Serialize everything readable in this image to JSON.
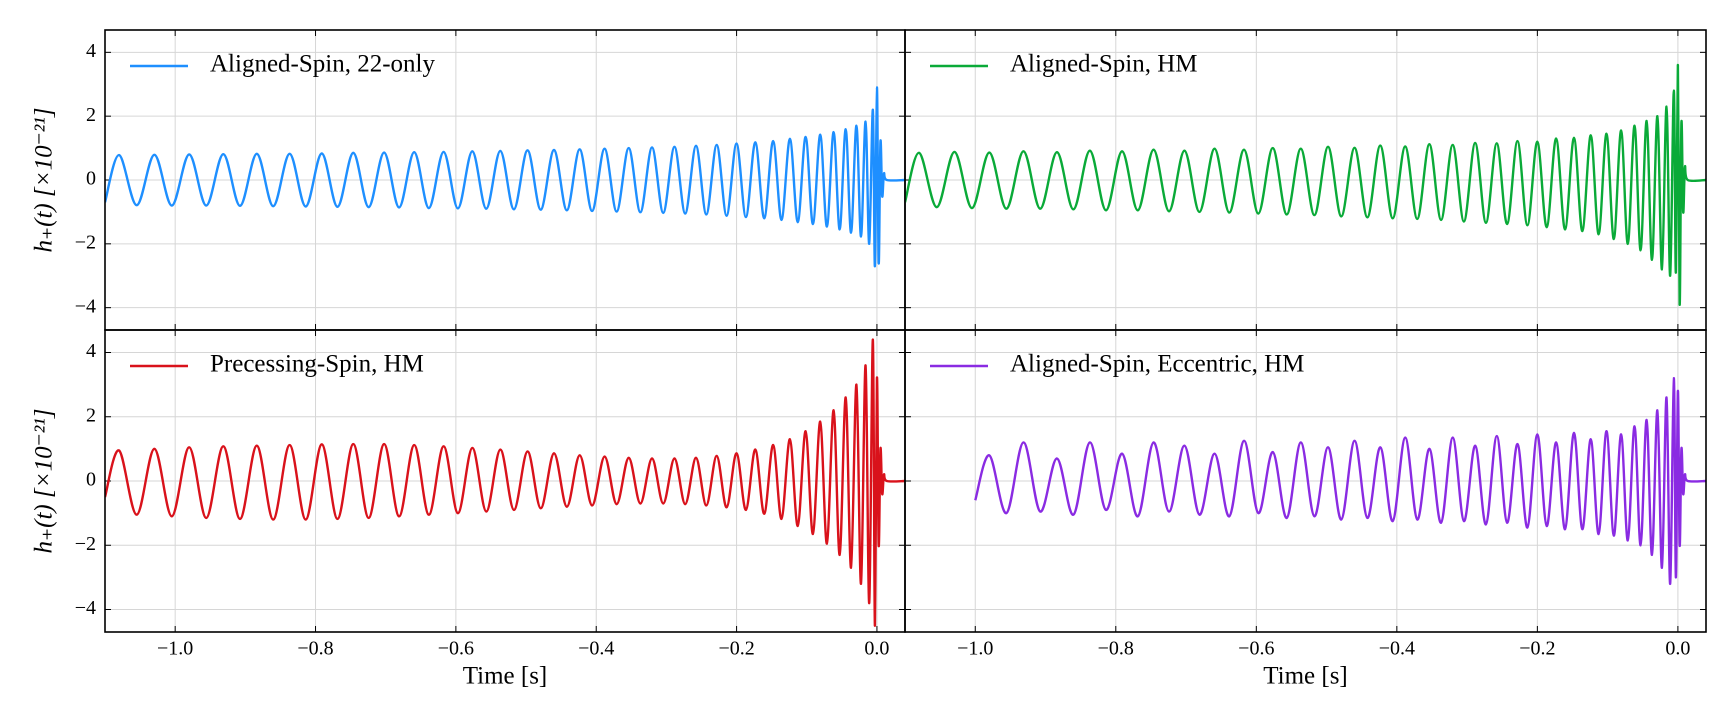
{
  "chart_data": [
    {
      "type": "line",
      "legend": "upper left",
      "grid": true,
      "ylabel": "h₊(t) [×10⁻²¹]",
      "xlim": [
        -1.1,
        0.04
      ],
      "ylim": [
        -4.7,
        4.7
      ],
      "xticks": [
        -1,
        -0.8,
        -0.6,
        -0.4,
        -0.2,
        0
      ],
      "yticks": [
        {
          "value": -4,
          "label": "−4"
        },
        {
          "value": -2,
          "label": "−2"
        },
        0,
        2,
        4
      ],
      "x": [
        -1.1,
        -1.08,
        -1.0548,
        -1.0296,
        -1.0048,
        -0.98,
        -0.9557,
        -0.9314,
        -0.9076,
        -0.8837,
        -0.8603,
        -0.8369,
        -0.814,
        -0.7911,
        -0.7687,
        -0.7462,
        -0.7243,
        -0.7023,
        -0.6809,
        -0.6594,
        -0.6385,
        -0.6175,
        -0.5971,
        -0.5766,
        -0.5567,
        -0.5367,
        -0.5173,
        -0.4979,
        -0.4791,
        -0.4602,
        -0.4419,
        -0.4236,
        -0.4059,
        -0.3881,
        -0.3709,
        -0.3537,
        -0.3371,
        -0.3205,
        -0.3045,
        -0.2885,
        -0.2732,
        -0.2578,
        -0.2431,
        -0.2283,
        -0.2142,
        -0.2001,
        -0.1867,
        -0.1733,
        -0.1606,
        -0.1479,
        -0.136,
        -0.124,
        -0.1128,
        -0.1016,
        -0.0912,
        -0.0808,
        -0.0713,
        -0.0617,
        -0.0531,
        -0.0445,
        -0.0369,
        -0.0292,
        -0.0227,
        -0.0162,
        -0.011,
        -0.0058,
        -0.0029,
        0,
        0.0025,
        0.005,
        0.0075,
        0.01,
        0.014,
        0.04
      ],
      "series": [
        {
          "name": "Aligned-Spin, 22-only",
          "color": "#1e8fff",
          "values": [
            -0.7,
            0.78,
            -0.79,
            0.79,
            -0.8,
            0.8,
            -0.8,
            0.81,
            -0.81,
            0.82,
            -0.82,
            0.82,
            -0.83,
            0.83,
            -0.84,
            0.85,
            -0.85,
            0.86,
            -0.86,
            0.87,
            -0.88,
            0.88,
            -0.89,
            0.9,
            -0.9,
            0.91,
            -0.92,
            0.93,
            -0.93,
            0.94,
            -0.95,
            0.96,
            -0.97,
            0.98,
            -0.99,
            1.0,
            -1.01,
            1.02,
            -1.03,
            1.04,
            -1.05,
            1.07,
            -1.08,
            1.1,
            -1.12,
            1.14,
            -1.16,
            1.18,
            -1.2,
            1.22,
            -1.25,
            1.29,
            -1.32,
            1.35,
            -1.38,
            1.42,
            -1.46,
            1.5,
            -1.55,
            1.59,
            -1.65,
            1.7,
            -1.77,
            1.83,
            -2.0,
            2.2,
            -2.7,
            2.9,
            -2.6,
            1.2,
            -0.5,
            0.2,
            0,
            0
          ]
        }
      ]
    },
    {
      "type": "line",
      "legend": "upper left",
      "grid": true,
      "xlim": [
        -1.1,
        0.04
      ],
      "ylim": [
        -4.7,
        4.7
      ],
      "xticks": [
        -1,
        -0.8,
        -0.6,
        -0.4,
        -0.2,
        0
      ],
      "yticks": [
        -4,
        -2,
        0,
        2,
        4
      ],
      "x": [
        -1.1,
        -1.08,
        -1.0548,
        -1.0296,
        -1.0048,
        -0.98,
        -0.9557,
        -0.9314,
        -0.9076,
        -0.8837,
        -0.8603,
        -0.8369,
        -0.814,
        -0.7911,
        -0.7687,
        -0.7462,
        -0.7243,
        -0.7023,
        -0.6809,
        -0.6594,
        -0.6385,
        -0.6175,
        -0.5971,
        -0.5766,
        -0.5567,
        -0.5367,
        -0.5173,
        -0.4979,
        -0.4791,
        -0.4602,
        -0.4419,
        -0.4236,
        -0.4059,
        -0.3881,
        -0.3709,
        -0.3537,
        -0.3371,
        -0.3205,
        -0.3045,
        -0.2885,
        -0.2732,
        -0.2578,
        -0.2431,
        -0.2283,
        -0.2142,
        -0.2001,
        -0.1867,
        -0.1733,
        -0.1606,
        -0.1479,
        -0.136,
        -0.124,
        -0.1128,
        -0.1016,
        -0.0912,
        -0.0808,
        -0.0713,
        -0.0617,
        -0.0531,
        -0.0445,
        -0.0369,
        -0.0292,
        -0.0227,
        -0.0162,
        -0.011,
        -0.0058,
        -0.0029,
        0,
        0.0025,
        0.005,
        0.0075,
        0.01,
        0.014,
        0.04
      ],
      "series": [
        {
          "name": "Aligned-Spin, HM",
          "color": "#0aaa38",
          "values": [
            -0.7,
            0.85,
            -0.85,
            0.88,
            -0.88,
            0.86,
            -0.9,
            0.9,
            -0.9,
            0.87,
            -0.92,
            0.92,
            -0.95,
            0.9,
            -0.95,
            0.95,
            -0.98,
            0.92,
            -1.0,
            0.98,
            -1.02,
            0.95,
            -1.05,
            1.0,
            -1.08,
            0.98,
            -1.1,
            1.04,
            -1.14,
            1.01,
            -1.17,
            1.08,
            -1.2,
            1.05,
            -1.22,
            1.12,
            -1.25,
            1.1,
            -1.3,
            1.16,
            -1.34,
            1.15,
            -1.38,
            1.22,
            -1.42,
            1.2,
            -1.48,
            1.3,
            -1.55,
            1.32,
            -1.6,
            1.4,
            -1.7,
            1.45,
            -1.85,
            1.55,
            -2.0,
            1.7,
            -2.2,
            1.85,
            -2.5,
            2.0,
            -2.8,
            2.3,
            -3.0,
            2.8,
            -2.9,
            3.6,
            -3.9,
            1.8,
            -1.0,
            0.4,
            0,
            0
          ]
        }
      ]
    },
    {
      "type": "line",
      "legend": "upper left",
      "grid": true,
      "ylabel": "h₊(t) [×10⁻²¹]",
      "xlabel": "Time [s]",
      "xlim": [
        -1.1,
        0.04
      ],
      "ylim": [
        -4.7,
        4.7
      ],
      "xticks": [
        {
          "value": -1,
          "label": "−1.0"
        },
        {
          "value": -0.8,
          "label": "−0.8"
        },
        {
          "value": -0.6,
          "label": "−0.6"
        },
        {
          "value": -0.4,
          "label": "−0.4"
        },
        {
          "value": -0.2,
          "label": "−0.2"
        },
        {
          "value": 0,
          "label": "0.0"
        }
      ],
      "yticks": [
        {
          "value": -4,
          "label": "−4"
        },
        {
          "value": -2,
          "label": "−2"
        },
        0,
        2,
        4
      ],
      "x": [
        -1.1,
        -1.08,
        -1.0548,
        -1.0296,
        -1.0048,
        -0.98,
        -0.9557,
        -0.9314,
        -0.9076,
        -0.8837,
        -0.8603,
        -0.8369,
        -0.814,
        -0.7911,
        -0.7687,
        -0.7462,
        -0.7243,
        -0.7023,
        -0.6809,
        -0.6594,
        -0.6385,
        -0.6175,
        -0.5971,
        -0.5766,
        -0.5567,
        -0.5367,
        -0.5173,
        -0.4979,
        -0.4791,
        -0.4602,
        -0.4419,
        -0.4236,
        -0.4059,
        -0.3881,
        -0.3709,
        -0.3537,
        -0.3371,
        -0.3205,
        -0.3045,
        -0.2885,
        -0.2732,
        -0.2578,
        -0.2431,
        -0.2283,
        -0.2142,
        -0.2001,
        -0.1867,
        -0.1733,
        -0.1606,
        -0.1479,
        -0.136,
        -0.124,
        -0.1128,
        -0.1016,
        -0.0912,
        -0.0808,
        -0.0713,
        -0.0617,
        -0.0531,
        -0.0445,
        -0.0369,
        -0.0292,
        -0.0227,
        -0.0162,
        -0.011,
        -0.0058,
        -0.0029,
        0,
        0.0025,
        0.005,
        0.0075,
        0.01,
        0.014,
        0.04
      ],
      "series": [
        {
          "name": "Precessing-Spin, HM",
          "color": "#d9121b",
          "values": [
            -0.5,
            0.95,
            -1.05,
            1.0,
            -1.1,
            1.05,
            -1.15,
            1.08,
            -1.18,
            1.1,
            -1.2,
            1.12,
            -1.2,
            1.14,
            -1.18,
            1.15,
            -1.15,
            1.15,
            -1.1,
            1.12,
            -1.05,
            1.08,
            -1.0,
            1.03,
            -0.95,
            0.98,
            -0.9,
            0.92,
            -0.85,
            0.86,
            -0.8,
            0.8,
            -0.76,
            0.76,
            -0.72,
            0.72,
            -0.7,
            0.7,
            -0.7,
            0.7,
            -0.72,
            0.72,
            -0.76,
            0.78,
            -0.82,
            0.86,
            -0.9,
            0.98,
            -1.02,
            1.12,
            -1.18,
            1.3,
            -1.4,
            1.55,
            -1.65,
            1.85,
            -1.95,
            2.2,
            -2.3,
            2.6,
            -2.7,
            3.0,
            -3.2,
            3.6,
            -3.8,
            4.4,
            -4.5,
            3.2,
            -2.0,
            1.0,
            -0.4,
            0.2,
            0,
            0
          ]
        }
      ]
    },
    {
      "type": "line",
      "legend": "upper left",
      "grid": true,
      "xlabel": "Time [s]",
      "xlim": [
        -1.1,
        0.04
      ],
      "ylim": [
        -4.7,
        4.7
      ],
      "xticks": [
        {
          "value": -1,
          "label": "−1.0"
        },
        {
          "value": -0.8,
          "label": "−0.8"
        },
        {
          "value": -0.6,
          "label": "−0.6"
        },
        {
          "value": -0.4,
          "label": "−0.4"
        },
        {
          "value": -0.2,
          "label": "−0.2"
        },
        {
          "value": 0,
          "label": "0.0"
        }
      ],
      "yticks": [
        -4,
        -2,
        0,
        2,
        4
      ],
      "x": [
        -1.0,
        -0.98,
        -0.9557,
        -0.9314,
        -0.9076,
        -0.8837,
        -0.8603,
        -0.8369,
        -0.814,
        -0.7911,
        -0.7687,
        -0.7462,
        -0.7243,
        -0.7023,
        -0.6809,
        -0.6594,
        -0.6385,
        -0.6175,
        -0.5971,
        -0.5766,
        -0.5567,
        -0.5367,
        -0.5173,
        -0.4979,
        -0.4791,
        -0.4602,
        -0.4419,
        -0.4236,
        -0.4059,
        -0.3881,
        -0.3709,
        -0.3537,
        -0.3371,
        -0.3205,
        -0.3045,
        -0.2885,
        -0.2732,
        -0.2578,
        -0.2431,
        -0.2283,
        -0.2142,
        -0.2001,
        -0.1867,
        -0.1733,
        -0.1606,
        -0.1479,
        -0.136,
        -0.124,
        -0.1128,
        -0.1016,
        -0.0912,
        -0.0808,
        -0.0713,
        -0.0617,
        -0.0531,
        -0.0445,
        -0.0369,
        -0.0292,
        -0.0227,
        -0.0162,
        -0.011,
        -0.0058,
        -0.0029,
        0,
        0.0025,
        0.005,
        0.0075,
        0.01,
        0.014,
        0.04
      ],
      "series": [
        {
          "name": "Aligned-Spin, Eccentric, HM",
          "color": "#8a2be2",
          "values": [
            -0.6,
            0.8,
            -1.0,
            1.2,
            -0.95,
            0.7,
            -1.05,
            1.2,
            -0.9,
            0.85,
            -1.1,
            1.2,
            -0.95,
            1.1,
            -1.05,
            0.85,
            -1.1,
            1.25,
            -1.0,
            0.9,
            -1.15,
            1.2,
            -1.1,
            1.05,
            -1.2,
            1.25,
            -1.15,
            1.05,
            -1.25,
            1.35,
            -1.2,
            1.0,
            -1.3,
            1.35,
            -1.25,
            1.1,
            -1.35,
            1.4,
            -1.3,
            1.15,
            -1.45,
            1.45,
            -1.4,
            1.2,
            -1.5,
            1.5,
            -1.5,
            1.3,
            -1.65,
            1.55,
            -1.7,
            1.45,
            -1.85,
            1.7,
            -2.0,
            1.9,
            -2.3,
            2.2,
            -2.7,
            2.6,
            -3.2,
            3.2,
            -3.0,
            2.8,
            -2.0,
            1.0,
            -0.4,
            0.2,
            0,
            0
          ]
        }
      ]
    }
  ]
}
